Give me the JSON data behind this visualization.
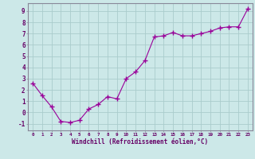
{
  "x": [
    0,
    1,
    2,
    3,
    4,
    5,
    6,
    7,
    8,
    9,
    10,
    11,
    12,
    13,
    14,
    15,
    16,
    17,
    18,
    19,
    20,
    21,
    22,
    23
  ],
  "y": [
    2.6,
    1.5,
    0.5,
    -0.8,
    -0.9,
    -0.7,
    0.3,
    0.7,
    1.4,
    1.2,
    3.0,
    3.6,
    4.6,
    6.7,
    6.8,
    7.1,
    6.8,
    6.8,
    7.0,
    7.2,
    7.5,
    7.6,
    7.6,
    9.2
  ],
  "line_color": "#990099",
  "marker": "+",
  "marker_size": 4,
  "bg_color": "#cce8e8",
  "grid_color": "#aacccc",
  "xlabel": "Windchill (Refroidissement éolien,°C)",
  "xlabel_color": "#660066",
  "ylabel_ticks": [
    -1,
    0,
    1,
    2,
    3,
    4,
    5,
    6,
    7,
    8,
    9
  ],
  "xlim": [
    -0.5,
    23.5
  ],
  "ylim": [
    -1.6,
    9.7
  ],
  "tick_label_color": "#660066",
  "spine_color": "#888899"
}
